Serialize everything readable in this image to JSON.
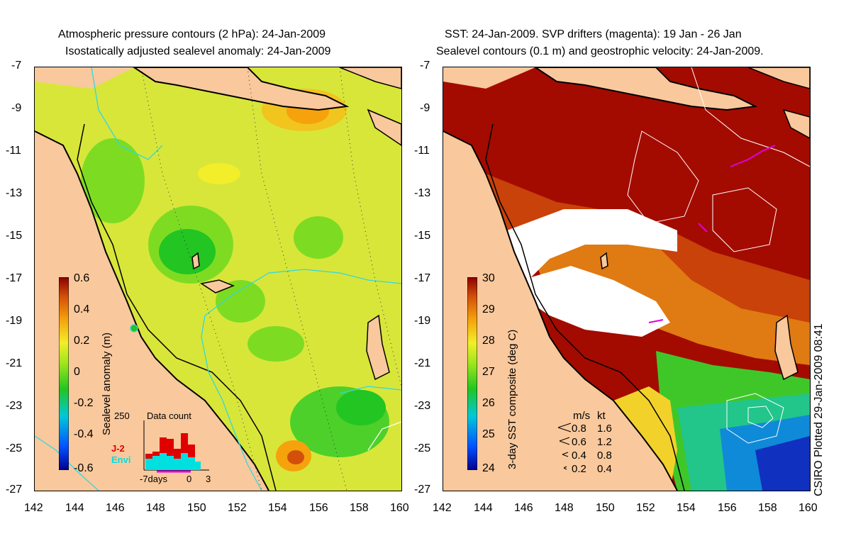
{
  "left": {
    "title1": "Atmospheric pressure contours (2 hPa): 24-Jan-2009",
    "title2": "Isostatically adjusted sealevel anomaly: 24-Jan-2009",
    "colorbar_label": "Sealevel anomaly (m)",
    "colorbar_ticks": [
      "0.6",
      "0.4",
      "0.2",
      "0",
      "-0.2",
      "-0.4",
      "-0.6"
    ],
    "inset": {
      "title": "Data count",
      "ymax": "250",
      "series": [
        {
          "name": "J-2",
          "color": "#e00000"
        },
        {
          "name": "Envi",
          "color": "#00e0e0"
        }
      ],
      "xlabels": [
        "-7days",
        "0",
        "3"
      ]
    }
  },
  "right": {
    "title1": "SST: 24-Jan-2009. SVP drifters (magenta): 19 Jan - 26 Jan",
    "title2": "Sealevel contours (0.1 m) and geostrophic velocity: 24-Jan-2009.",
    "colorbar_label": "3-day SST composite (deg C)",
    "colorbar_ticks": [
      "30",
      "29",
      "28",
      "27",
      "26",
      "25",
      "24"
    ],
    "velocity_key": {
      "header_ms": "m/s",
      "header_kt": "kt",
      "rows": [
        {
          "ms": "0.8",
          "kt": "1.6"
        },
        {
          "ms": "0.6",
          "kt": "1.2"
        },
        {
          "ms": "0.4",
          "kt": "0.8"
        },
        {
          "ms": "0.2",
          "kt": "0.4"
        }
      ]
    }
  },
  "axes": {
    "y_ticks": [
      "-7",
      "-9",
      "-11",
      "-13",
      "-15",
      "-17",
      "-19",
      "-21",
      "-23",
      "-25",
      "-27"
    ],
    "x_ticks": [
      "142",
      "144",
      "146",
      "148",
      "150",
      "152",
      "154",
      "156",
      "158",
      "160"
    ]
  },
  "credit": "CSIRO Plotted 29-Jan-2009 08:41",
  "colors": {
    "land": "#f9c89c",
    "coast": "#000000",
    "sla_colormap": [
      "#00008f",
      "#0050ff",
      "#00c8d8",
      "#22c522",
      "#9be51c",
      "#f2ee2a",
      "#f5a20d",
      "#d2500a",
      "#8b0000"
    ],
    "sst_colormap": [
      "#00008f",
      "#0050ff",
      "#00c8d8",
      "#22c522",
      "#9be51c",
      "#f2ee2a",
      "#f5a20d",
      "#d2500a",
      "#8b0000"
    ]
  }
}
